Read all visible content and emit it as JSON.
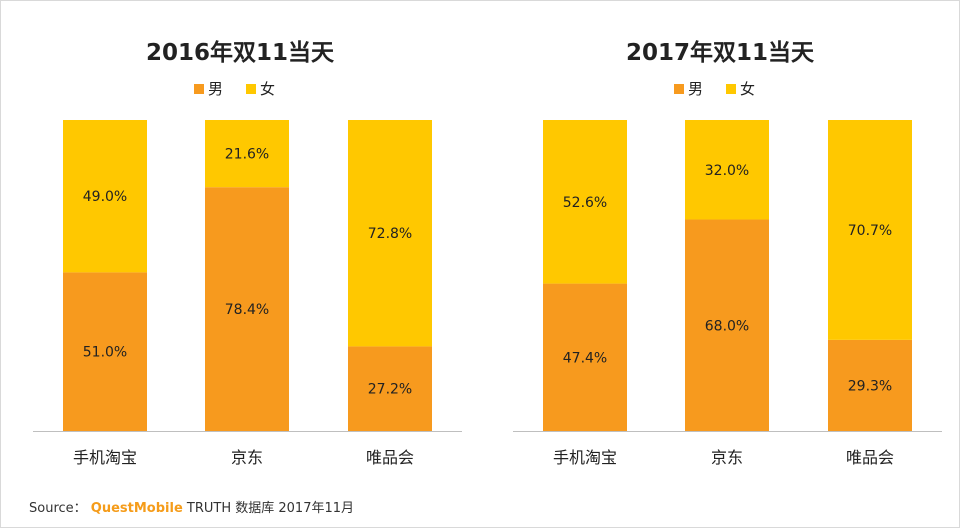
{
  "chart_data": [
    {
      "type": "bar",
      "stacked": true,
      "title": "2016年双11当天",
      "categories": [
        "手机淘宝",
        "京东",
        "唯品会"
      ],
      "series": [
        {
          "name": "男",
          "values": [
            51.0,
            78.4,
            27.2
          ],
          "labels": [
            "51.0%",
            "78.4%",
            "27.2%"
          ],
          "color": "#f79a1e"
        },
        {
          "name": "女",
          "values": [
            49.0,
            21.6,
            72.8
          ],
          "labels": [
            "49.0%",
            "21.6%",
            "72.8%"
          ],
          "color": "#ffc800"
        }
      ],
      "ylim": [
        0,
        100
      ],
      "legend": "top-center",
      "grid": false
    },
    {
      "type": "bar",
      "stacked": true,
      "title": "2017年双11当天",
      "categories": [
        "手机淘宝",
        "京东",
        "唯品会"
      ],
      "series": [
        {
          "name": "男",
          "values": [
            47.4,
            68.0,
            29.3
          ],
          "labels": [
            "47.4%",
            "68.0%",
            "29.3%"
          ],
          "color": "#f79a1e"
        },
        {
          "name": "女",
          "values": [
            52.6,
            32.0,
            70.7
          ],
          "labels": [
            "52.6%",
            "32.0%",
            "70.7%"
          ],
          "color": "#ffc800"
        }
      ],
      "ylim": [
        0,
        100
      ],
      "legend": "top-center",
      "grid": false
    }
  ],
  "footer": {
    "prefix": "Source：",
    "brand": "QuestMobile",
    "rest": "TRUTH 数据库 2017年11月"
  }
}
